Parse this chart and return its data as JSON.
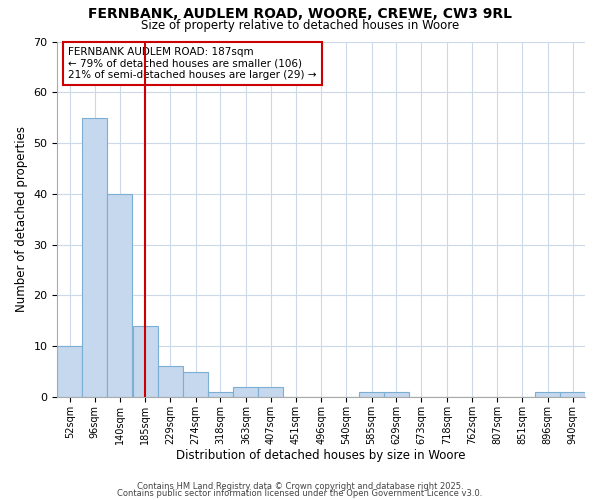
{
  "title1": "FERNBANK, AUDLEM ROAD, WOORE, CREWE, CW3 9RL",
  "title2": "Size of property relative to detached houses in Woore",
  "xlabel": "Distribution of detached houses by size in Woore",
  "ylabel": "Number of detached properties",
  "bins": [
    52,
    96,
    140,
    185,
    229,
    274,
    318,
    363,
    407,
    451,
    496,
    540,
    585,
    629,
    673,
    718,
    762,
    807,
    851,
    896,
    940
  ],
  "values": [
    10,
    55,
    40,
    14,
    6,
    5,
    1,
    2,
    2,
    0,
    0,
    0,
    1,
    1,
    0,
    0,
    0,
    0,
    0,
    1,
    1
  ],
  "bar_color": "#c5d8ee",
  "bar_edge_color": "#7bafd4",
  "ref_line_x": 185,
  "ref_line_color": "#cc0000",
  "annotation_text": "FERNBANK AUDLEM ROAD: 187sqm\n← 79% of detached houses are smaller (106)\n21% of semi-detached houses are larger (29) →",
  "ylim": [
    0,
    70
  ],
  "yticks": [
    0,
    10,
    20,
    30,
    40,
    50,
    60,
    70
  ],
  "background_color": "#ffffff",
  "grid_color": "#ccd9ea",
  "footer1": "Contains HM Land Registry data © Crown copyright and database right 2025.",
  "footer2": "Contains public sector information licensed under the Open Government Licence v3.0."
}
